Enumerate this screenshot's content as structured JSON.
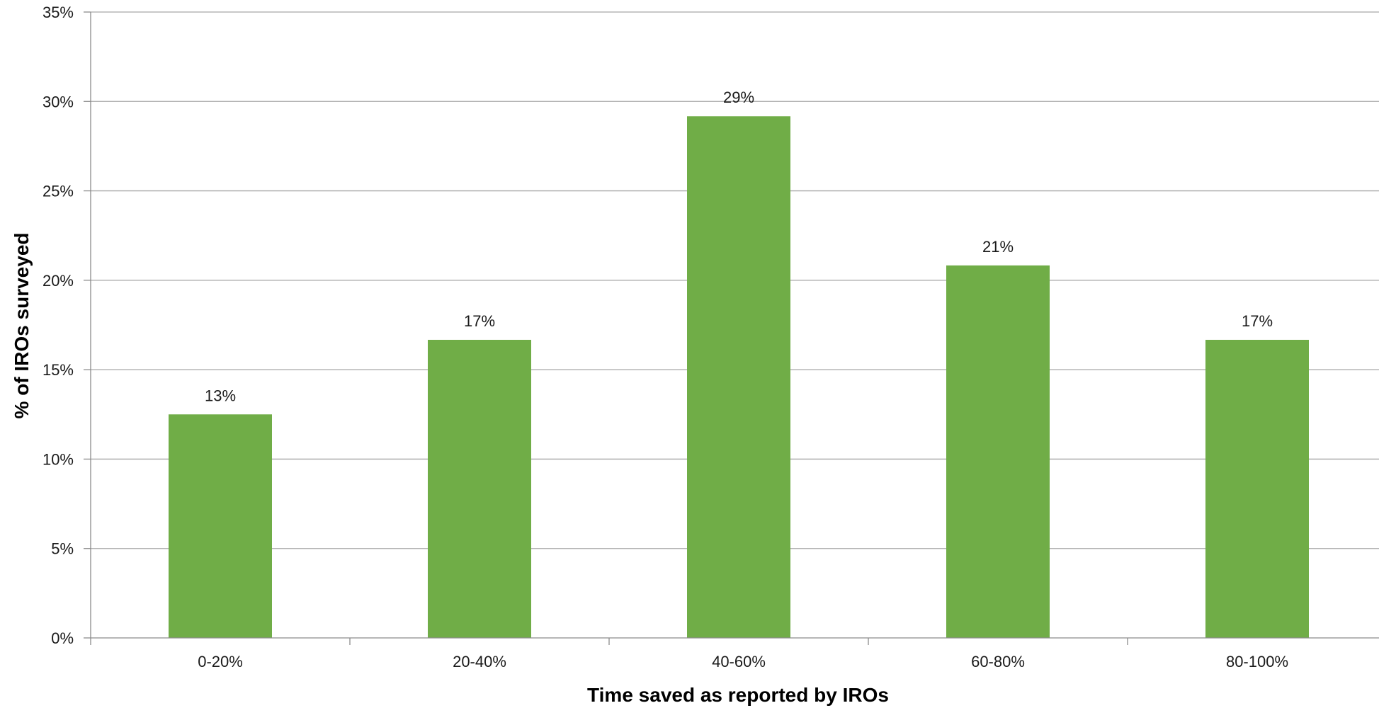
{
  "chart_data": {
    "type": "bar",
    "categories": [
      "0-20%",
      "20-40%",
      "40-60%",
      "60-80%",
      "80-100%"
    ],
    "values": [
      0.125,
      0.1667,
      0.2917,
      0.2083,
      0.1667
    ],
    "data_labels": [
      "13%",
      "17%",
      "29%",
      "21%",
      "17%"
    ],
    "title": "",
    "xlabel": "Time saved as reported by IROs",
    "ylabel": "% of IROs surveyed",
    "ylim": [
      0,
      0.35
    ],
    "yticks": [
      0,
      0.05,
      0.1,
      0.15,
      0.2,
      0.25,
      0.3,
      0.35
    ],
    "ytick_labels": [
      "0%",
      "5%",
      "10%",
      "15%",
      "20%",
      "25%",
      "30%",
      "35%"
    ],
    "grid": true,
    "legend": "none",
    "colors": {
      "bar": "#70AD47",
      "grid": "#A6A6A6",
      "axis": "#8C8C8C"
    }
  }
}
